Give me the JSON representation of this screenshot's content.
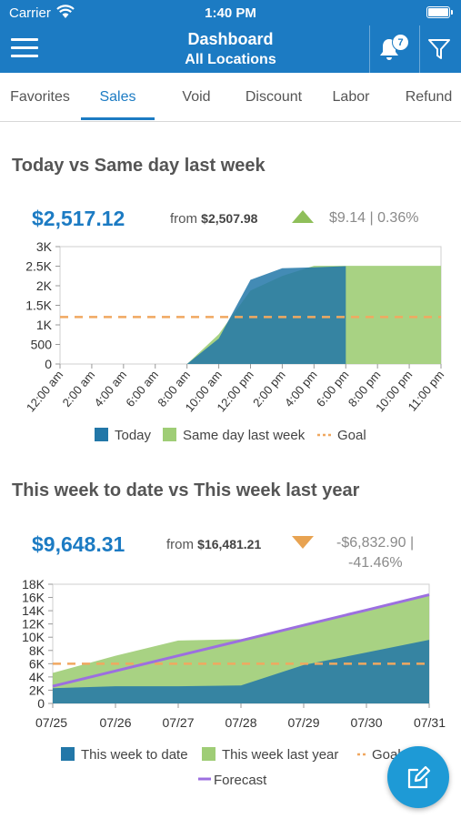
{
  "status_bar": {
    "carrier": "Carrier",
    "time": "1:40 PM"
  },
  "header": {
    "title": "Dashboard",
    "subtitle": "All Locations",
    "notification_count": "7"
  },
  "tabs": [
    {
      "label": "Favorites",
      "active": false
    },
    {
      "label": "Sales",
      "active": true
    },
    {
      "label": "Void",
      "active": false
    },
    {
      "label": "Discount",
      "active": false
    },
    {
      "label": "Labor",
      "active": false
    },
    {
      "label": "Refund",
      "active": false
    }
  ],
  "cards": {
    "daily": {
      "title": "Today vs Same day last week",
      "value": "$2,517.12",
      "from_label": "from",
      "from_value": "$2,507.98",
      "trend": "up",
      "delta": "$9.14 | 0.36%"
    },
    "weekly": {
      "title": "This week to date vs This week last year",
      "value": "$9,648.31",
      "from_label": "from",
      "from_value": "$16,481.21",
      "trend": "down",
      "delta_line1": "-$6,832.90 |",
      "delta_line2": "-41.46%"
    }
  },
  "colors": {
    "brand": "#1c7bc3",
    "today": "#2277a8",
    "last_period": "#9fcd76",
    "goal": "#f0a860",
    "forecast": "#9c6fe0",
    "trend_up": "#8fbf5a",
    "trend_down": "#e8a352"
  },
  "icons": {
    "menu": "hamburger-icon",
    "notifications": "bell-icon",
    "filter": "filter-icon",
    "edit": "edit-icon"
  },
  "chart_data": [
    {
      "type": "area",
      "title": "Today vs Same day last week",
      "x": [
        "12:00 am",
        "2:00 am",
        "4:00 am",
        "6:00 am",
        "8:00 am",
        "10:00 am",
        "12:00 pm",
        "2:00 pm",
        "4:00 pm",
        "6:00 pm",
        "8:00 pm",
        "10:00 pm",
        "11:00 pm"
      ],
      "series": [
        {
          "name": "Today",
          "values": [
            0,
            0,
            0,
            0,
            0,
            650,
            2150,
            2450,
            2470,
            2500,
            null,
            null,
            null
          ]
        },
        {
          "name": "Same day last week",
          "values": [
            0,
            0,
            0,
            0,
            0,
            760,
            1880,
            2250,
            2510,
            2510,
            2510,
            2510,
            2510
          ]
        },
        {
          "name": "Goal",
          "values": [
            1200,
            1200,
            1200,
            1200,
            1200,
            1200,
            1200,
            1200,
            1200,
            1200,
            1200,
            1200,
            1200
          ]
        }
      ],
      "yticks": [
        "0",
        "500",
        "1K",
        "1.5K",
        "2K",
        "2.5K",
        "3K"
      ],
      "ylim": [
        0,
        3000
      ],
      "legend": [
        "Today",
        "Same day last week",
        "Goal"
      ]
    },
    {
      "type": "area",
      "title": "This week to date vs This week last year",
      "x": [
        "07/25",
        "07/26",
        "07/27",
        "07/28",
        "07/29",
        "07/30",
        "07/31"
      ],
      "series": [
        {
          "name": "This week to date",
          "values": [
            2300,
            2600,
            2600,
            2700,
            5800,
            7700,
            9600
          ]
        },
        {
          "name": "This week last year",
          "values": [
            4600,
            7200,
            9500,
            9700,
            11800,
            14100,
            16400
          ]
        },
        {
          "name": "Goal",
          "values": [
            6000,
            6000,
            6000,
            6000,
            6000,
            6000,
            6000
          ]
        },
        {
          "name": "Forecast",
          "values": [
            2600,
            4900,
            7200,
            9500,
            11800,
            14100,
            16400
          ]
        }
      ],
      "yticks": [
        "0",
        "2K",
        "4K",
        "6K",
        "8K",
        "10K",
        "12K",
        "14K",
        "16K",
        "18K"
      ],
      "ylim": [
        0,
        18000
      ],
      "legend": [
        "This week to date",
        "This week last year",
        "Goal",
        "Forecast"
      ]
    }
  ]
}
